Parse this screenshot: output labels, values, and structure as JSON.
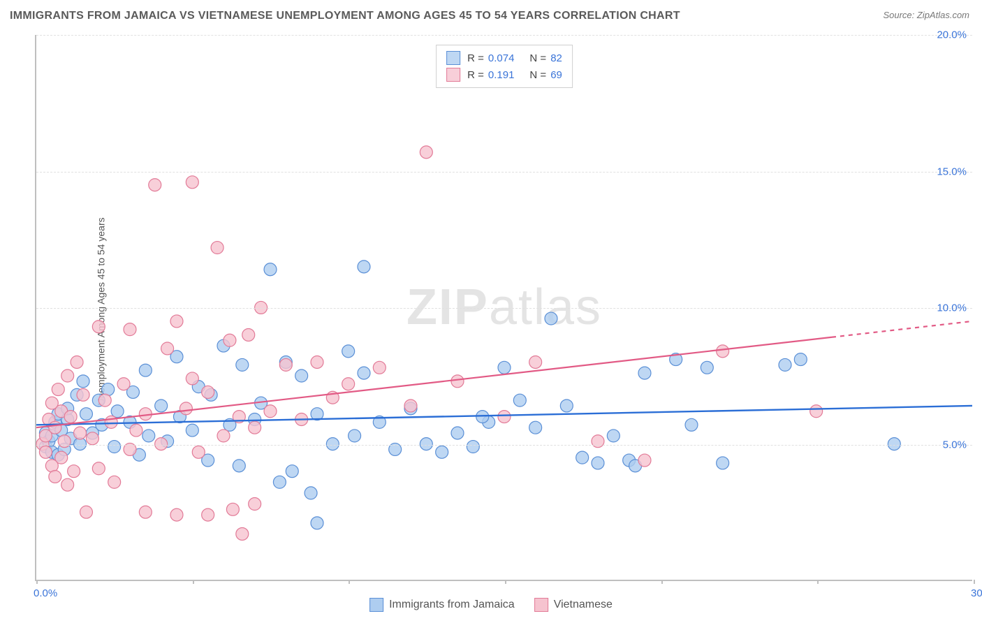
{
  "title": "IMMIGRANTS FROM JAMAICA VS VIETNAMESE UNEMPLOYMENT AMONG AGES 45 TO 54 YEARS CORRELATION CHART",
  "title_fontsize": 16,
  "title_color": "#5a5a5a",
  "source_label": "Source: ZipAtlas.com",
  "source_fontsize": 13,
  "source_color": "#777",
  "ylabel": "Unemployment Among Ages 45 to 54 years",
  "ylabel_fontsize": 14,
  "axis_color": "#bfbfbf",
  "grid_color": "#e0e0e0",
  "background_color": "#ffffff",
  "tick_label_color": "#3a74d8",
  "tick_fontsize": 15,
  "xlim": [
    0,
    30
  ],
  "ylim": [
    0,
    20
  ],
  "xticks": [
    0,
    5,
    10,
    15,
    20,
    25,
    30
  ],
  "xtick_labels": {
    "0": "0.0%",
    "30": "30.0%"
  },
  "yticks": [
    5,
    10,
    15,
    20
  ],
  "ytick_labels": {
    "5": "5.0%",
    "10": "10.0%",
    "15": "15.0%",
    "20": "20.0%"
  },
  "watermark_text_bold": "ZIP",
  "watermark_text_light": "atlas",
  "watermark_color": "#d6d6d6aa",
  "marker_radius": 9,
  "marker_stroke_width": 1.2,
  "series": [
    {
      "name": "Immigrants from Jamaica",
      "fill": "#aecdf0cc",
      "stroke": "#5a8fd6",
      "R_label": "R =",
      "R_value": "0.074",
      "N_label": "N =",
      "N_value": "82",
      "trend": {
        "x1": 0,
        "y1": 5.7,
        "x2": 30,
        "y2": 6.4,
        "x_data_max": 30,
        "stroke": "#2b6ed6",
        "width": 2.4
      },
      "points": [
        [
          0.3,
          4.9
        ],
        [
          0.3,
          5.4
        ],
        [
          0.4,
          5.1
        ],
        [
          0.5,
          4.7
        ],
        [
          0.5,
          5.3
        ],
        [
          0.6,
          5.8
        ],
        [
          0.7,
          4.6
        ],
        [
          0.7,
          6.1
        ],
        [
          0.8,
          5.5
        ],
        [
          0.9,
          4.8
        ],
        [
          1.0,
          5.9
        ],
        [
          1.0,
          6.3
        ],
        [
          1.1,
          5.2
        ],
        [
          1.3,
          6.8
        ],
        [
          1.4,
          5.0
        ],
        [
          1.5,
          7.3
        ],
        [
          1.6,
          6.1
        ],
        [
          1.8,
          5.4
        ],
        [
          2.0,
          6.6
        ],
        [
          2.1,
          5.7
        ],
        [
          2.3,
          7.0
        ],
        [
          2.5,
          4.9
        ],
        [
          2.6,
          6.2
        ],
        [
          3.0,
          5.8
        ],
        [
          3.1,
          6.9
        ],
        [
          3.3,
          4.6
        ],
        [
          3.5,
          7.7
        ],
        [
          3.6,
          5.3
        ],
        [
          4.0,
          6.4
        ],
        [
          4.2,
          5.1
        ],
        [
          4.5,
          8.2
        ],
        [
          4.6,
          6.0
        ],
        [
          5.0,
          5.5
        ],
        [
          5.2,
          7.1
        ],
        [
          5.5,
          4.4
        ],
        [
          5.6,
          6.8
        ],
        [
          6.0,
          8.6
        ],
        [
          6.2,
          5.7
        ],
        [
          6.5,
          4.2
        ],
        [
          6.6,
          7.9
        ],
        [
          7.0,
          5.9
        ],
        [
          7.2,
          6.5
        ],
        [
          7.5,
          11.4
        ],
        [
          7.8,
          3.6
        ],
        [
          8.0,
          8.0
        ],
        [
          8.2,
          4.0
        ],
        [
          8.5,
          7.5
        ],
        [
          8.8,
          3.2
        ],
        [
          9.0,
          6.1
        ],
        [
          9.0,
          2.1
        ],
        [
          9.5,
          5.0
        ],
        [
          10.0,
          8.4
        ],
        [
          10.2,
          5.3
        ],
        [
          10.5,
          11.5
        ],
        [
          10.5,
          7.6
        ],
        [
          11.0,
          5.8
        ],
        [
          11.5,
          4.8
        ],
        [
          12.0,
          6.3
        ],
        [
          12.5,
          5.0
        ],
        [
          13.0,
          4.7
        ],
        [
          13.5,
          5.4
        ],
        [
          14.0,
          4.9
        ],
        [
          14.5,
          5.8
        ],
        [
          15.0,
          7.8
        ],
        [
          15.5,
          6.6
        ],
        [
          16.0,
          5.6
        ],
        [
          16.5,
          9.6
        ],
        [
          17.0,
          6.4
        ],
        [
          17.5,
          4.5
        ],
        [
          18.0,
          4.3
        ],
        [
          18.5,
          5.3
        ],
        [
          19.0,
          4.4
        ],
        [
          19.5,
          7.6
        ],
        [
          20.5,
          8.1
        ],
        [
          21.0,
          5.7
        ],
        [
          21.5,
          7.8
        ],
        [
          22.0,
          4.3
        ],
        [
          24.0,
          7.9
        ],
        [
          24.5,
          8.1
        ],
        [
          27.5,
          5.0
        ],
        [
          19.2,
          4.2
        ],
        [
          14.3,
          6.0
        ]
      ]
    },
    {
      "name": "Vietnamese",
      "fill": "#f6c3cfcc",
      "stroke": "#e27a97",
      "R_label": "R =",
      "R_value": "0.191",
      "N_label": "N =",
      "N_value": "69",
      "trend": {
        "x1": 0,
        "y1": 5.6,
        "x2": 30,
        "y2": 9.5,
        "x_data_max": 25.5,
        "stroke": "#e25a85",
        "width": 2.2
      },
      "points": [
        [
          0.2,
          5.0
        ],
        [
          0.3,
          5.3
        ],
        [
          0.3,
          4.7
        ],
        [
          0.4,
          5.9
        ],
        [
          0.5,
          4.2
        ],
        [
          0.5,
          6.5
        ],
        [
          0.6,
          5.6
        ],
        [
          0.6,
          3.8
        ],
        [
          0.7,
          7.0
        ],
        [
          0.8,
          4.5
        ],
        [
          0.8,
          6.2
        ],
        [
          0.9,
          5.1
        ],
        [
          1.0,
          7.5
        ],
        [
          1.0,
          3.5
        ],
        [
          1.1,
          6.0
        ],
        [
          1.2,
          4.0
        ],
        [
          1.3,
          8.0
        ],
        [
          1.4,
          5.4
        ],
        [
          1.5,
          6.8
        ],
        [
          1.6,
          2.5
        ],
        [
          1.8,
          5.2
        ],
        [
          2.0,
          9.3
        ],
        [
          2.0,
          4.1
        ],
        [
          2.2,
          6.6
        ],
        [
          2.4,
          5.8
        ],
        [
          2.5,
          3.6
        ],
        [
          2.8,
          7.2
        ],
        [
          3.0,
          4.8
        ],
        [
          3.0,
          9.2
        ],
        [
          3.2,
          5.5
        ],
        [
          3.5,
          6.1
        ],
        [
          3.5,
          2.5
        ],
        [
          3.8,
          14.5
        ],
        [
          4.0,
          5.0
        ],
        [
          4.2,
          8.5
        ],
        [
          4.5,
          9.5
        ],
        [
          4.5,
          2.4
        ],
        [
          4.8,
          6.3
        ],
        [
          5.0,
          14.6
        ],
        [
          5.0,
          7.4
        ],
        [
          5.2,
          4.7
        ],
        [
          5.5,
          6.9
        ],
        [
          5.5,
          2.4
        ],
        [
          5.8,
          12.2
        ],
        [
          6.0,
          5.3
        ],
        [
          6.2,
          8.8
        ],
        [
          6.3,
          2.6
        ],
        [
          6.5,
          6.0
        ],
        [
          6.8,
          9.0
        ],
        [
          7.0,
          5.6
        ],
        [
          7.0,
          2.8
        ],
        [
          7.2,
          10.0
        ],
        [
          7.5,
          6.2
        ],
        [
          8.0,
          7.9
        ],
        [
          8.5,
          5.9
        ],
        [
          9.0,
          8.0
        ],
        [
          9.5,
          6.7
        ],
        [
          10.0,
          7.2
        ],
        [
          11.0,
          7.8
        ],
        [
          12.0,
          6.4
        ],
        [
          12.5,
          15.7
        ],
        [
          13.5,
          7.3
        ],
        [
          15.0,
          6.0
        ],
        [
          16.0,
          8.0
        ],
        [
          18.0,
          5.1
        ],
        [
          19.5,
          4.4
        ],
        [
          22.0,
          8.4
        ],
        [
          25.0,
          6.2
        ],
        [
          6.6,
          1.7
        ]
      ]
    }
  ],
  "legend": {
    "border_color": "#cfcfcf",
    "value_color": "#3a74d8"
  },
  "bottom_legend_items": [
    {
      "label": "Immigrants from Jamaica",
      "fill": "#aecdf0",
      "stroke": "#5a8fd6"
    },
    {
      "label": "Vietnamese",
      "fill": "#f6c3cf",
      "stroke": "#e27a97"
    }
  ]
}
